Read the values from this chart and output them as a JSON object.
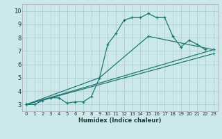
{
  "xlabel": "Humidex (Indice chaleur)",
  "background_color": "#cce8ea",
  "grid_color": "#aacfd4",
  "line_color": "#1e7870",
  "xlim": [
    -0.5,
    23.5
  ],
  "ylim": [
    2.5,
    10.5
  ],
  "xticks": [
    0,
    1,
    2,
    3,
    4,
    5,
    6,
    7,
    8,
    9,
    10,
    11,
    12,
    13,
    14,
    15,
    16,
    17,
    18,
    19,
    20,
    21,
    22,
    23
  ],
  "yticks": [
    3,
    4,
    5,
    6,
    7,
    8,
    9,
    10
  ],
  "series": [
    {
      "x": [
        0,
        1,
        2,
        3,
        4,
        5,
        6,
        7,
        8,
        9,
        10,
        11,
        12,
        13,
        14,
        15,
        16,
        17,
        18,
        19,
        20,
        21,
        22
      ],
      "y": [
        3.0,
        3.0,
        3.3,
        3.5,
        3.5,
        3.1,
        3.2,
        3.2,
        3.6,
        5.0,
        7.5,
        8.3,
        9.3,
        9.5,
        9.5,
        9.8,
        9.5,
        9.5,
        8.1,
        7.3,
        7.8,
        7.5,
        7.1
      ]
    },
    {
      "x": [
        0,
        9,
        15,
        23
      ],
      "y": [
        3.0,
        5.0,
        8.1,
        7.1
      ]
    },
    {
      "x": [
        0,
        23
      ],
      "y": [
        3.0,
        7.1
      ]
    },
    {
      "x": [
        0,
        23
      ],
      "y": [
        3.0,
        6.8
      ]
    }
  ]
}
